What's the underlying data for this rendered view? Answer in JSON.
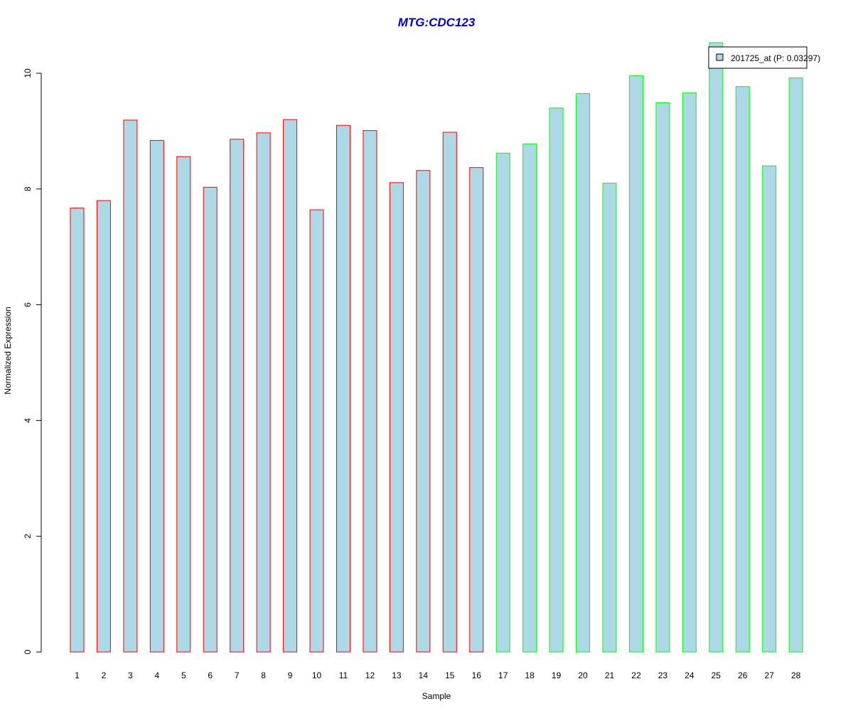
{
  "chart_data": {
    "type": "bar",
    "title": "MTG:CDC123",
    "title_color": "#0000CC",
    "xlabel": "Sample",
    "ylabel": "Normalized Expression",
    "ylim": [
      0,
      10
    ],
    "yticks": [
      0,
      2,
      4,
      6,
      8,
      10
    ],
    "categories": [
      "1",
      "2",
      "3",
      "4",
      "5",
      "6",
      "7",
      "8",
      "9",
      "10",
      "11",
      "12",
      "13",
      "14",
      "15",
      "16",
      "17",
      "18",
      "19",
      "20",
      "21",
      "22",
      "23",
      "24",
      "25",
      "26",
      "27",
      "28"
    ],
    "values": [
      7.67,
      7.8,
      9.19,
      8.84,
      8.56,
      8.03,
      8.86,
      8.97,
      9.2,
      7.64,
      9.1,
      9.01,
      8.11,
      8.32,
      8.98,
      8.37,
      8.62,
      8.78,
      9.4,
      9.65,
      8.1,
      9.96,
      9.49,
      9.66,
      10.53,
      9.77,
      8.4,
      9.92
    ],
    "groups": [
      1,
      1,
      1,
      1,
      1,
      1,
      1,
      1,
      1,
      1,
      1,
      1,
      1,
      1,
      1,
      1,
      2,
      2,
      2,
      2,
      2,
      2,
      2,
      2,
      2,
      2,
      2,
      2
    ],
    "group_border_colors": {
      "1": "#FF0000",
      "2": "#00FF00"
    },
    "bar_fill": "#ADD8E6",
    "grid": false,
    "legend": {
      "position": "top-right",
      "entries": [
        {
          "label": "201725_at (P: 0.03297)",
          "color": "#ADD8E6"
        }
      ]
    }
  }
}
